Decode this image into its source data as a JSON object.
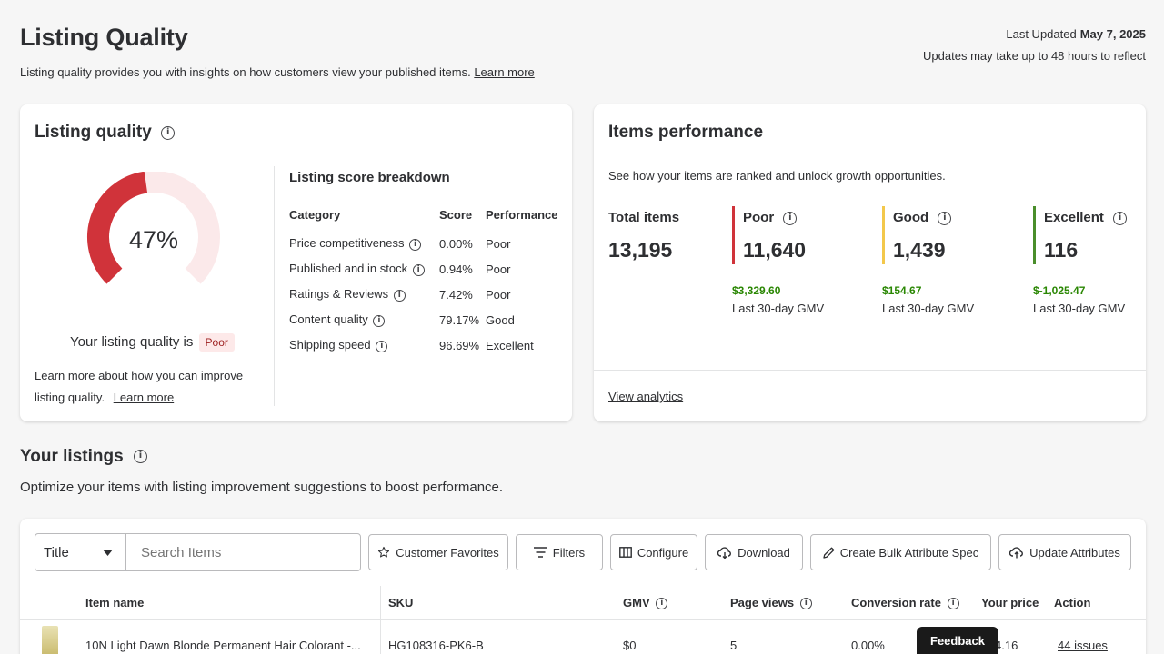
{
  "header": {
    "title": "Listing Quality",
    "subtitle": "Listing quality provides you with insights on how customers view your published items.",
    "learn_more": "Learn more",
    "last_updated_label": "Last Updated",
    "last_updated_date": "May 7, 2025",
    "updates_note": "Updates may take up to 48 hours to reflect"
  },
  "listing_quality": {
    "title": "Listing quality",
    "score": 0.47,
    "score_text": "47%",
    "status_prefix": "Your listing quality is",
    "status_badge": "Poor",
    "improve_text": "Learn more about how you can improve",
    "improve_text2": "listing quality.",
    "learn_more": "Learn more",
    "colors": {
      "filled": "#d0333a",
      "empty": "#fbe9ea"
    },
    "breakdown": {
      "title": "Listing score breakdown",
      "headers": [
        "Category",
        "Score",
        "Performance"
      ],
      "rows": [
        {
          "category": "Price competitiveness",
          "score": "0.00%",
          "performance": "Poor"
        },
        {
          "category": "Published and in stock",
          "score": "0.94%",
          "performance": "Poor"
        },
        {
          "category": "Ratings & Reviews",
          "score": "7.42%",
          "performance": "Poor"
        },
        {
          "category": "Content quality",
          "score": "79.17%",
          "performance": "Good"
        },
        {
          "category": "Shipping speed",
          "score": "96.69%",
          "performance": "Excellent"
        }
      ]
    }
  },
  "items_performance": {
    "title": "Items performance",
    "subtitle": "See how your items are ranked and unlock growth opportunities.",
    "total_label": "Total items",
    "total_value": "13,195",
    "buckets": [
      {
        "label": "Poor",
        "value": "11,640",
        "gmv": "$3,329.60",
        "gmv_label": "Last 30-day GMV",
        "color": "#d0333a"
      },
      {
        "label": "Good",
        "value": "1,439",
        "gmv": "$154.67",
        "gmv_label": "Last 30-day GMV",
        "color": "#f3c84b"
      },
      {
        "label": "Excellent",
        "value": "116",
        "gmv": "$-1,025.47",
        "gmv_label": "Last 30-day GMV",
        "color": "#4a8e2b"
      }
    ],
    "view_analytics": "View analytics"
  },
  "listings": {
    "title": "Your listings",
    "subtitle": "Optimize your items with listing improvement suggestions to boost performance.",
    "search_type": "Title",
    "search_placeholder": "Search Items",
    "buttons": {
      "favorites": "Customer Favorites",
      "filters": "Filters",
      "configure": "Configure",
      "download": "Download",
      "bulk": "Create Bulk Attribute Spec",
      "update": "Update Attributes"
    },
    "columns": {
      "item_name": "Item name",
      "sku": "SKU",
      "gmv": "GMV",
      "page_views": "Page views",
      "conversion": "Conversion rate",
      "price": "Your price",
      "action": "Action"
    },
    "rows": [
      {
        "item_name": "10N Light Dawn Blonde Permanent Hair Colorant -...",
        "sku": "HG108316-PK6-B",
        "gmv": "$0",
        "page_views": "5",
        "conversion": "0.00%",
        "price": "4.16",
        "action": "44 issues"
      }
    ]
  },
  "feedback": "Feedback"
}
